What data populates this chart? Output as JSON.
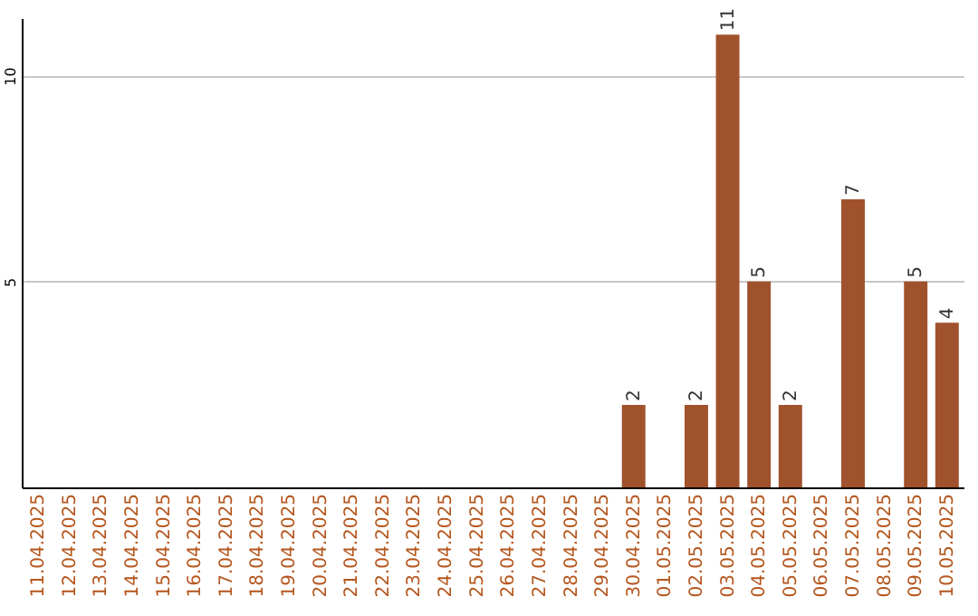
{
  "chart_data": {
    "type": "bar",
    "categories": [
      "11.04.2025",
      "12.04.2025",
      "13.04.2025",
      "14.04.2025",
      "15.04.2025",
      "16.04.2025",
      "17.04.2025",
      "18.04.2025",
      "19.04.2025",
      "20.04.2025",
      "21.04.2025",
      "22.04.2025",
      "23.04.2025",
      "24.04.2025",
      "25.04.2025",
      "26.04.2025",
      "27.04.2025",
      "28.04.2025",
      "29.04.2025",
      "30.04.2025",
      "01.05.2025",
      "02.05.2025",
      "03.05.2025",
      "04.05.2025",
      "05.05.2025",
      "06.05.2025",
      "07.05.2025",
      "08.05.2025",
      "09.05.2025",
      "10.05.2025"
    ],
    "values": [
      0,
      0,
      0,
      0,
      0,
      0,
      0,
      0,
      0,
      0,
      0,
      0,
      0,
      0,
      0,
      0,
      0,
      0,
      0,
      2,
      0,
      2,
      11,
      5,
      2,
      0,
      7,
      0,
      5,
      4
    ],
    "value_labels": [
      null,
      null,
      null,
      null,
      null,
      null,
      null,
      null,
      null,
      null,
      null,
      null,
      null,
      null,
      null,
      null,
      null,
      null,
      null,
      "2",
      null,
      "2",
      "11",
      "5",
      "2",
      null,
      "7",
      null,
      "5",
      "4"
    ],
    "color": "#a0522d",
    "ylim": [
      0,
      11.4
    ],
    "yticks": [
      5,
      10
    ],
    "grid": "y"
  }
}
